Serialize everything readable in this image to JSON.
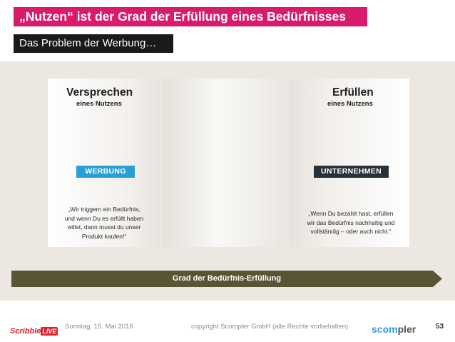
{
  "slide": {
    "title": "„Nutzen“ ist der Grad der Erfüllung eines Bedürfnisses",
    "subtitle": "Das Problem der Werbung…"
  },
  "left_column": {
    "heading": "Versprechen",
    "subheading": "eines Nutzens",
    "tag": "WERBUNG",
    "quote_lines": [
      "„Wir triggern ein Bedürfnis,",
      "und wenn Du es erfüllt haben",
      "willst, dann musst du unser",
      "Produkt kaufen!“"
    ]
  },
  "right_column": {
    "heading": "Erfüllen",
    "subheading": "eines Nutzens",
    "tag": "UNTERNEHMEN",
    "quote_lines": [
      "„Wenn Du bezahlt hast, erfüllen",
      "wir das Bedürfnis nachhaltig und",
      "vollständig – oder auch nicht.“"
    ]
  },
  "arrow": {
    "label": "Grad der Bedürfnis-Erfüllung"
  },
  "footer": {
    "date": "Sonntag, 15. Mai 2016",
    "copyright": "copyright Scompler GmbH (alle Rechte vorbehalten)",
    "page_number": "53",
    "logo_left": {
      "part1": "Scribble",
      "part2": "LIVE"
    },
    "logo_right": {
      "part1": "scom",
      "part2": "pler"
    }
  },
  "colors": {
    "title_bar": "#d81b6a",
    "subtitle_bar": "#1a1a1a",
    "werbung_tag": "#2a9fd6",
    "unternehmen_tag": "#263238",
    "arrow": "#575533",
    "stage_background": "#ece8e1"
  }
}
